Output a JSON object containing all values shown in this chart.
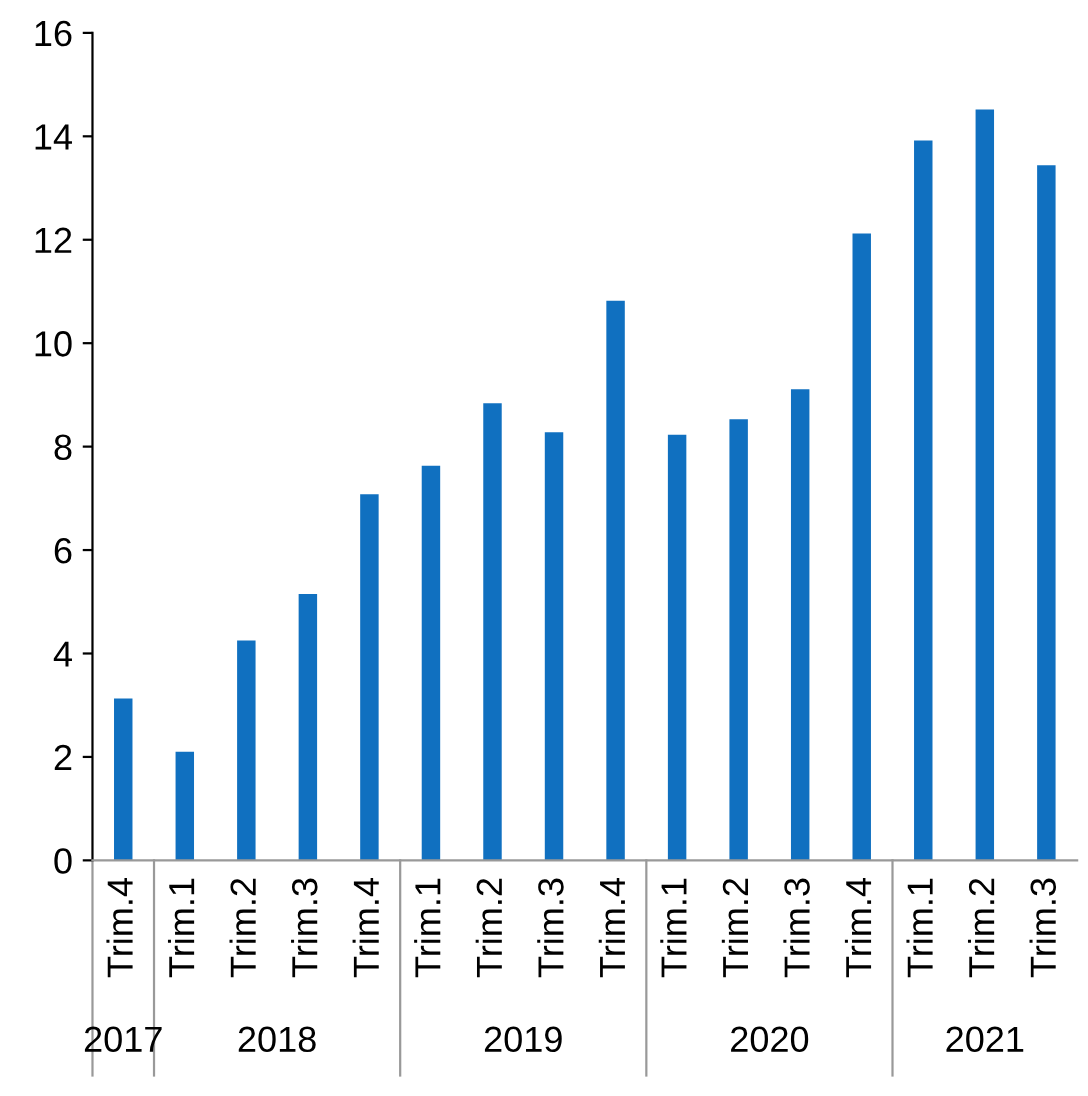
{
  "chart_data": {
    "type": "bar",
    "categories": [
      "Trim.4",
      "Trim.1",
      "Trim.2",
      "Trim.3",
      "Trim.4",
      "Trim.1",
      "Trim.2",
      "Trim.3",
      "Trim.4",
      "Trim.1",
      "Trim.2",
      "Trim.3",
      "Trim.4",
      "Trim.1",
      "Trim.2",
      "Trim.3"
    ],
    "values": [
      3.13,
      2.1,
      4.25,
      5.15,
      7.08,
      7.63,
      8.84,
      8.28,
      10.82,
      8.23,
      8.53,
      9.11,
      12.12,
      13.92,
      14.52,
      13.44
    ],
    "color": "#1070c0",
    "ylim": [
      0,
      16
    ],
    "yticks": [
      0,
      2,
      4,
      6,
      8,
      10,
      12,
      14,
      16
    ],
    "grid": false,
    "annotations": [
      "2017",
      "2018",
      "2019",
      "2020",
      "2021"
    ]
  }
}
